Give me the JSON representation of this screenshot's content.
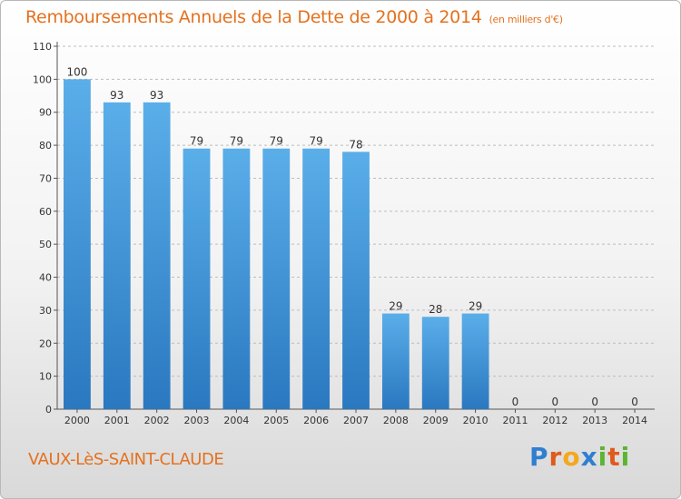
{
  "chart_data": {
    "type": "bar",
    "title": "Remboursements Annuels de la Dette de 2000 à 2014",
    "subtitle": "(en milliers d'€)",
    "categories": [
      "2000",
      "2001",
      "2002",
      "2003",
      "2004",
      "2005",
      "2006",
      "2007",
      "2008",
      "2009",
      "2010",
      "2011",
      "2012",
      "2013",
      "2014"
    ],
    "values": [
      100,
      93,
      93,
      79,
      79,
      79,
      79,
      78,
      29,
      28,
      29,
      0,
      0,
      0,
      0
    ],
    "ylim": [
      0,
      110
    ],
    "yticks": [
      0,
      10,
      20,
      30,
      40,
      50,
      60,
      70,
      80,
      90,
      100,
      110
    ],
    "grid": true,
    "bar_color": "#4a9fe3"
  },
  "footer": {
    "place": "VAUX-LèS-SAINT-CLAUDE",
    "logo_letters": [
      "P",
      "r",
      "o",
      "x",
      "i",
      "t",
      "i"
    ],
    "logo_colors": [
      "#2f7fd1",
      "#e05a1c",
      "#f4a81d",
      "#2f7fd1",
      "#5cb531",
      "#e05a1c",
      "#5cb531"
    ]
  }
}
